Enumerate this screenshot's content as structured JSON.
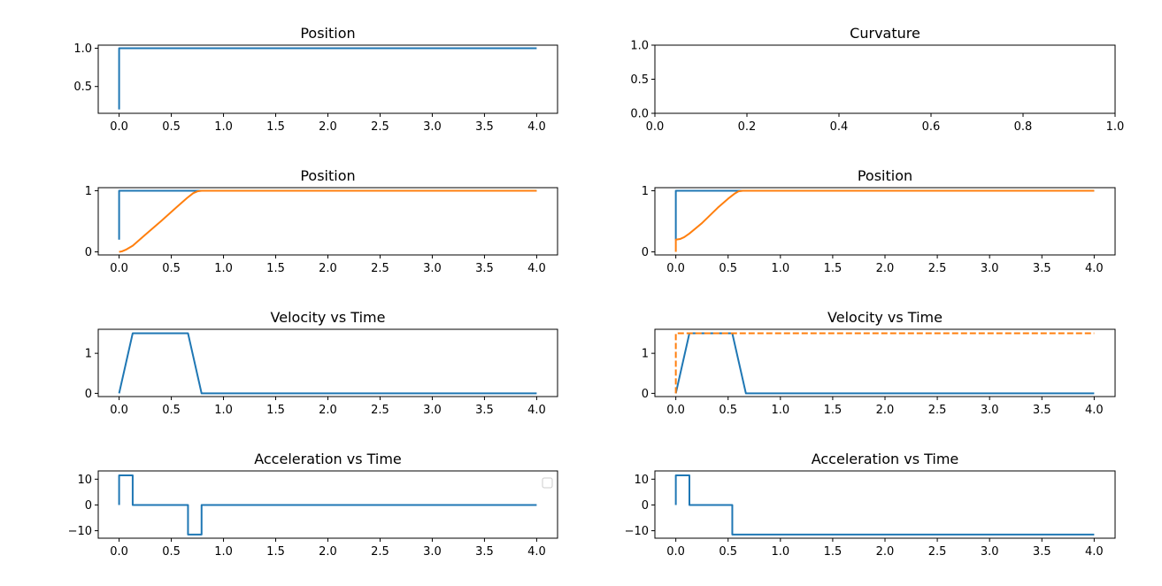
{
  "figure": {
    "background": "#ffffff",
    "series_colors": {
      "blue": "#1f77b4",
      "orange": "#ff7f0e"
    }
  },
  "chart_data": [
    {
      "id": "left-position-1",
      "type": "line",
      "title": "Position",
      "xlim": [
        -0.2,
        4.2
      ],
      "ylim": [
        0.15,
        1.04
      ],
      "xticks": [
        "0.0",
        "0.5",
        "1.0",
        "1.5",
        "2.0",
        "2.5",
        "3.0",
        "3.5",
        "4.0"
      ],
      "xtick_values": [
        0,
        0.5,
        1,
        1.5,
        2,
        2.5,
        3,
        3.5,
        4
      ],
      "yticks": [
        "0.5",
        "1.0"
      ],
      "ytick_values": [
        0.5,
        1.0
      ],
      "legend": false,
      "series": [
        {
          "color": "#1f77b4",
          "style": "solid",
          "x": [
            0,
            0,
            4
          ],
          "y": [
            0.2,
            1.0,
            1.0
          ]
        }
      ]
    },
    {
      "id": "right-curvature",
      "type": "line",
      "title": "Curvature",
      "xlim": [
        0,
        1
      ],
      "ylim": [
        0,
        1
      ],
      "xticks": [
        "0.0",
        "0.2",
        "0.4",
        "0.6",
        "0.8",
        "1.0"
      ],
      "xtick_values": [
        0,
        0.2,
        0.4,
        0.6,
        0.8,
        1.0
      ],
      "yticks": [
        "0.0",
        "0.5",
        "1.0"
      ],
      "ytick_values": [
        0,
        0.5,
        1.0
      ],
      "legend": false,
      "series": []
    },
    {
      "id": "left-position-2",
      "type": "line",
      "title": "Position",
      "xlim": [
        -0.2,
        4.2
      ],
      "ylim": [
        -0.05,
        1.05
      ],
      "xticks": [
        "0.0",
        "0.5",
        "1.0",
        "1.5",
        "2.0",
        "2.5",
        "3.0",
        "3.5",
        "4.0"
      ],
      "xtick_values": [
        0,
        0.5,
        1,
        1.5,
        2,
        2.5,
        3,
        3.5,
        4
      ],
      "yticks": [
        "0",
        "1"
      ],
      "ytick_values": [
        0,
        1
      ],
      "legend": false,
      "series": [
        {
          "color": "#1f77b4",
          "style": "solid",
          "x": [
            0,
            0,
            4
          ],
          "y": [
            0.2,
            1.0,
            1.0
          ]
        },
        {
          "color": "#ff7f0e",
          "style": "solid",
          "x": [
            0,
            0.03,
            0.07,
            0.13,
            0.25,
            0.4,
            0.55,
            0.65,
            0.71,
            0.75,
            0.79,
            4
          ],
          "y": [
            0,
            0.01,
            0.04,
            0.1,
            0.28,
            0.5,
            0.73,
            0.88,
            0.96,
            0.99,
            1.0,
            1.0
          ]
        }
      ]
    },
    {
      "id": "right-position",
      "type": "line",
      "title": "Position",
      "xlim": [
        -0.2,
        4.2
      ],
      "ylim": [
        -0.05,
        1.05
      ],
      "xticks": [
        "0.0",
        "0.5",
        "1.0",
        "1.5",
        "2.0",
        "2.5",
        "3.0",
        "3.5",
        "4.0"
      ],
      "xtick_values": [
        0,
        0.5,
        1,
        1.5,
        2,
        2.5,
        3,
        3.5,
        4
      ],
      "yticks": [
        "0",
        "1"
      ],
      "ytick_values": [
        0,
        1
      ],
      "legend": false,
      "series": [
        {
          "color": "#1f77b4",
          "style": "solid",
          "x": [
            0,
            0,
            4
          ],
          "y": [
            0.2,
            1.0,
            1.0
          ]
        },
        {
          "color": "#ff7f0e",
          "style": "solid",
          "x": [
            0,
            0,
            0.04,
            0.08,
            0.13,
            0.25,
            0.4,
            0.5,
            0.56,
            0.6,
            0.64,
            4
          ],
          "y": [
            0,
            0.2,
            0.21,
            0.24,
            0.3,
            0.47,
            0.72,
            0.87,
            0.95,
            0.99,
            1.0,
            1.0
          ]
        }
      ]
    },
    {
      "id": "left-velocity",
      "type": "line",
      "title": "Velocity vs Time",
      "xlim": [
        -0.2,
        4.2
      ],
      "ylim": [
        -0.08,
        1.6
      ],
      "xticks": [
        "0.0",
        "0.5",
        "1.0",
        "1.5",
        "2.0",
        "2.5",
        "3.0",
        "3.5",
        "4.0"
      ],
      "xtick_values": [
        0,
        0.5,
        1,
        1.5,
        2,
        2.5,
        3,
        3.5,
        4
      ],
      "yticks": [
        "0",
        "1"
      ],
      "ytick_values": [
        0,
        1
      ],
      "legend": false,
      "series": [
        {
          "color": "#1f77b4",
          "style": "solid",
          "x": [
            0,
            0.13,
            0.66,
            0.79,
            4
          ],
          "y": [
            0,
            1.5,
            1.5,
            0,
            0
          ]
        }
      ]
    },
    {
      "id": "right-velocity",
      "type": "line",
      "title": "Velocity vs Time",
      "xlim": [
        -0.2,
        4.2
      ],
      "ylim": [
        -0.08,
        1.6
      ],
      "xticks": [
        "0.0",
        "0.5",
        "1.0",
        "1.5",
        "2.0",
        "2.5",
        "3.0",
        "3.5",
        "4.0"
      ],
      "xtick_values": [
        0,
        0.5,
        1,
        1.5,
        2,
        2.5,
        3,
        3.5,
        4
      ],
      "yticks": [
        "0",
        "1"
      ],
      "ytick_values": [
        0,
        1
      ],
      "legend": false,
      "series": [
        {
          "color": "#1f77b4",
          "style": "solid",
          "x": [
            0,
            0.13,
            0.54,
            0.67,
            4
          ],
          "y": [
            0,
            1.5,
            1.5,
            0,
            0
          ]
        },
        {
          "color": "#ff7f0e",
          "style": "dashed",
          "x": [
            0,
            0,
            4
          ],
          "y": [
            0,
            1.5,
            1.5
          ]
        }
      ]
    },
    {
      "id": "left-acceleration",
      "type": "line",
      "title": "Acceleration vs Time",
      "xlim": [
        -0.2,
        4.2
      ],
      "ylim": [
        -12.9,
        13.2
      ],
      "xticks": [
        "0.0",
        "0.5",
        "1.0",
        "1.5",
        "2.0",
        "2.5",
        "3.0",
        "3.5",
        "4.0"
      ],
      "xtick_values": [
        0,
        0.5,
        1,
        1.5,
        2,
        2.5,
        3,
        3.5,
        4
      ],
      "yticks": [
        "−10",
        "0",
        "10"
      ],
      "ytick_values": [
        -10,
        0,
        10
      ],
      "legend": true,
      "legend_position": "upper right",
      "series": [
        {
          "color": "#1f77b4",
          "style": "solid",
          "x": [
            0,
            0,
            0.13,
            0.13,
            0.66,
            0.66,
            0.79,
            0.79,
            4
          ],
          "y": [
            0,
            11.5,
            11.5,
            0,
            0,
            -11.5,
            -11.5,
            0,
            0
          ]
        }
      ]
    },
    {
      "id": "right-acceleration",
      "type": "line",
      "title": "Acceleration vs Time",
      "xlim": [
        -0.2,
        4.2
      ],
      "ylim": [
        -12.9,
        13.2
      ],
      "xticks": [
        "0.0",
        "0.5",
        "1.0",
        "1.5",
        "2.0",
        "2.5",
        "3.0",
        "3.5",
        "4.0"
      ],
      "xtick_values": [
        0,
        0.5,
        1,
        1.5,
        2,
        2.5,
        3,
        3.5,
        4
      ],
      "yticks": [
        "−10",
        "0",
        "10"
      ],
      "ytick_values": [
        -10,
        0,
        10
      ],
      "legend": false,
      "series": [
        {
          "color": "#1f77b4",
          "style": "solid",
          "x": [
            0,
            0,
            0.13,
            0.13,
            0.54,
            0.54,
            4
          ],
          "y": [
            0,
            11.5,
            11.5,
            0,
            0,
            -11.5,
            -11.5
          ]
        }
      ]
    }
  ]
}
